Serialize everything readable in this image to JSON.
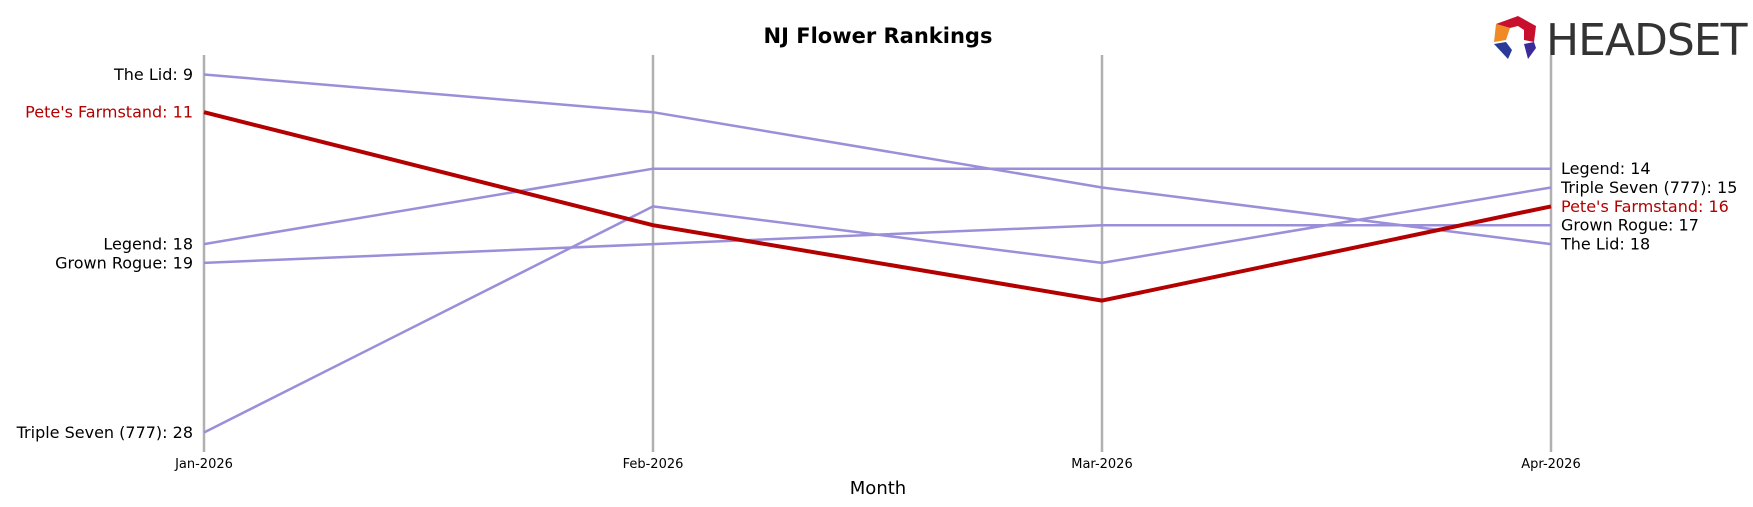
{
  "chart_data": {
    "type": "line",
    "title": "NJ Flower Rankings",
    "xlabel": "Month",
    "ylabel": "",
    "categories": [
      "Jan-2026",
      "Feb-2026",
      "Mar-2026",
      "Apr-2026"
    ],
    "y_inverted": true,
    "ylim": [
      8,
      28
    ],
    "grid": "vertical lines at each month",
    "series": [
      {
        "name": "The Lid",
        "values": [
          9,
          11,
          15,
          18
        ],
        "highlight": false
      },
      {
        "name": "Pete's Farmstand",
        "values": [
          11,
          17,
          21,
          16
        ],
        "highlight": true
      },
      {
        "name": "Legend",
        "values": [
          18,
          14,
          14,
          14
        ],
        "highlight": false
      },
      {
        "name": "Grown Rogue",
        "values": [
          19,
          18,
          17,
          17
        ],
        "highlight": false
      },
      {
        "name": "Triple Seven (777)",
        "values": [
          28,
          16,
          19,
          15
        ],
        "highlight": false
      }
    ],
    "start_labels": [
      "The Lid: 9",
      "Pete's Farmstand: 11",
      "Legend: 18",
      "Grown Rogue: 19",
      "Triple Seven (777): 28"
    ],
    "end_labels": [
      "Legend: 14",
      "Triple Seven (777): 15",
      "Pete's Farmstand: 16",
      "Grown Rogue: 17",
      "The Lid: 18"
    ],
    "colors": {
      "base": "#9a8fd8",
      "highlight": "#b30000",
      "grid": "#b0b0b0"
    }
  },
  "logo": {
    "text": "HEADSET",
    "icon": "headset-hexagon-icon"
  }
}
